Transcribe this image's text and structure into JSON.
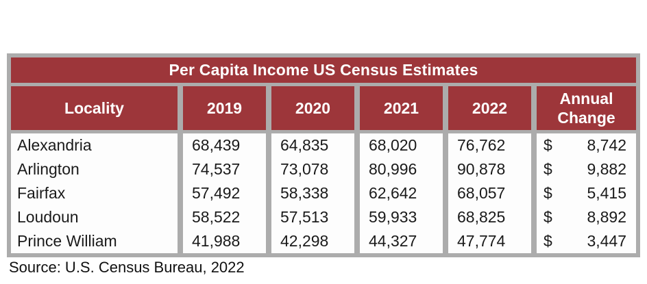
{
  "title": "Per Capita Income US Census Estimates",
  "headers": {
    "locality": "Locality",
    "y2019": "2019",
    "y2020": "2020",
    "y2021": "2021",
    "y2022": "2022",
    "annual_line1": "Annual",
    "annual_line2": "Change"
  },
  "rows": [
    {
      "locality": "Alexandria",
      "y2019": "68,439",
      "y2020": "64,835",
      "y2021": "68,020",
      "y2022": "76,762",
      "currency": "$",
      "annual": "8,742"
    },
    {
      "locality": "Arlington",
      "y2019": "74,537",
      "y2020": "73,078",
      "y2021": "80,996",
      "y2022": "90,878",
      "currency": "$",
      "annual": "9,882"
    },
    {
      "locality": "Fairfax",
      "y2019": "57,492",
      "y2020": "58,338",
      "y2021": "62,642",
      "y2022": "68,057",
      "currency": "$",
      "annual": "5,415"
    },
    {
      "locality": "Loudoun",
      "y2019": "58,522",
      "y2020": "57,513",
      "y2021": "59,933",
      "y2022": "68,825",
      "currency": "$",
      "annual": "8,892"
    },
    {
      "locality": "Prince William",
      "y2019": "41,988",
      "y2020": "42,298",
      "y2021": "44,327",
      "y2022": "47,774",
      "currency": "$",
      "annual": "3,447"
    }
  ],
  "source": "Source: U.S. Census Bureau, 2022",
  "colors": {
    "header_bg": "#9d363a",
    "header_text": "#ffffff",
    "grid_border": "#acacac",
    "cell_bg": "#fdfdfd",
    "data_text": "#1a1a1a"
  },
  "chart_data": {
    "type": "table",
    "title": "Per Capita Income US Census Estimates",
    "columns": [
      "Locality",
      "2019",
      "2020",
      "2021",
      "2022",
      "Annual Change"
    ],
    "rows": [
      [
        "Alexandria",
        68439,
        64835,
        68020,
        76762,
        8742
      ],
      [
        "Arlington",
        74537,
        73078,
        80996,
        90878,
        9882
      ],
      [
        "Fairfax",
        57492,
        58338,
        62642,
        68057,
        5415
      ],
      [
        "Loudoun",
        58522,
        57513,
        59933,
        68825,
        8892
      ],
      [
        "Prince William",
        41988,
        42298,
        44327,
        47774,
        3447
      ]
    ],
    "notes": "Annual Change column formatted accounting-style with leading $",
    "source": "Source: U.S. Census Bureau, 2022"
  }
}
